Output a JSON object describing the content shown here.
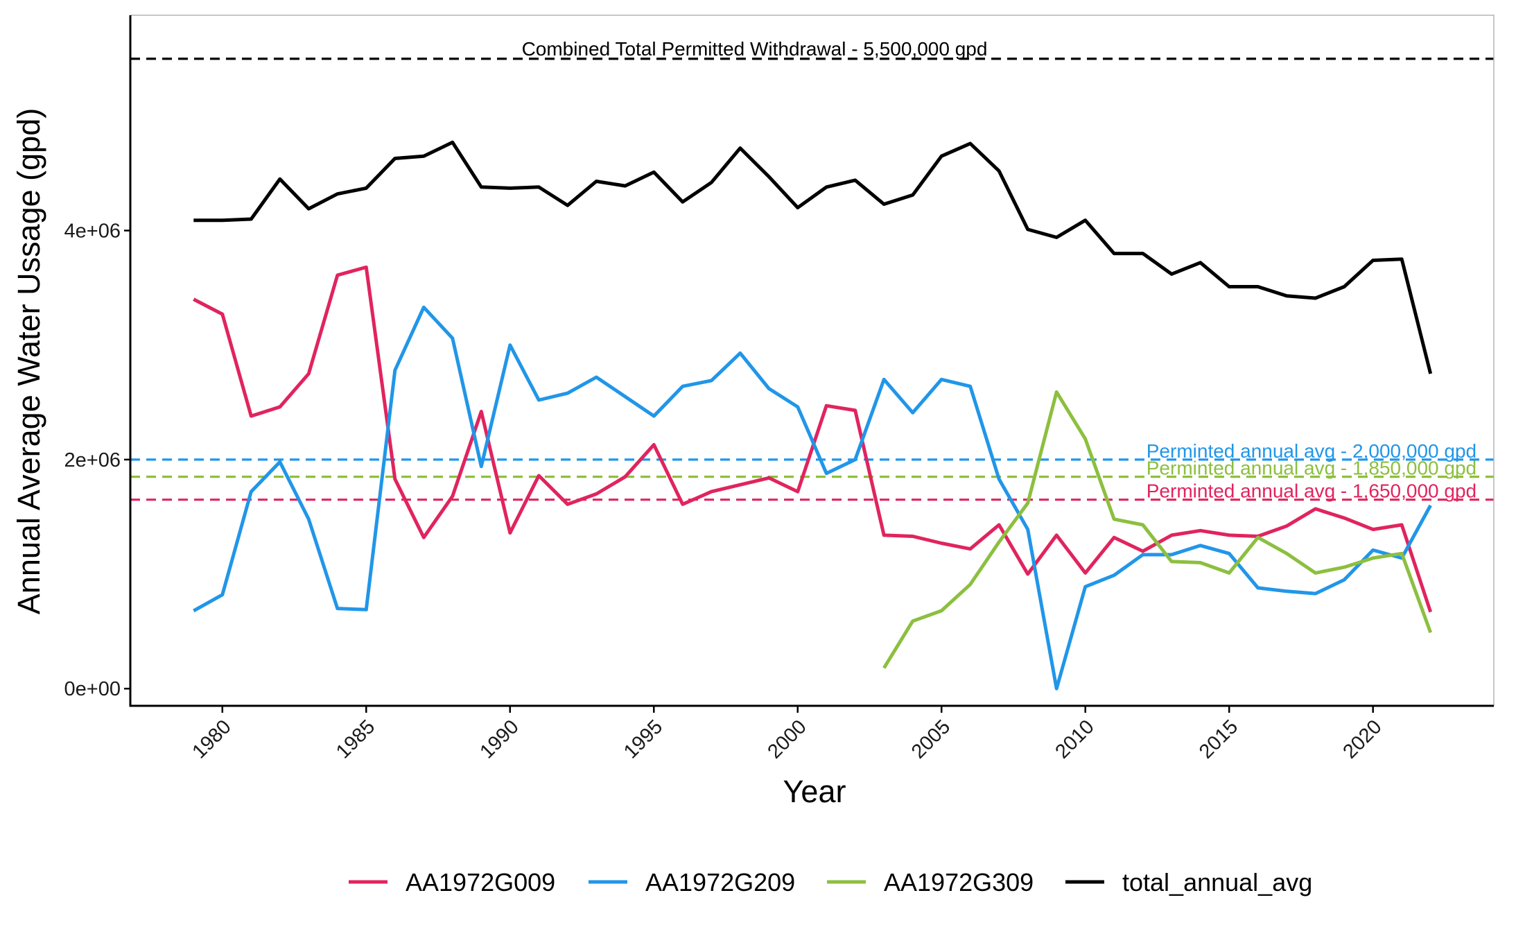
{
  "chart_data": {
    "type": "line",
    "title": "",
    "xlabel": "Year",
    "ylabel": "Annual Average Water Ussage (gpd)",
    "xlim": [
      1976.8,
      2024.2
    ],
    "ylim": [
      -150000,
      5880000
    ],
    "x_ticks": [
      1980,
      1985,
      1990,
      1995,
      2000,
      2005,
      2010,
      2015,
      2020
    ],
    "x_tick_labels": [
      "1980",
      "1985",
      "1990",
      "1995",
      "2000",
      "2005",
      "2010",
      "2015",
      "2020"
    ],
    "y_ticks": [
      0,
      2000000,
      4000000
    ],
    "y_tick_labels": [
      "0e+00",
      "2e+06",
      "4e+06"
    ],
    "grid": false,
    "legend_position": "bottom",
    "series": [
      {
        "name": "AA1972G009",
        "color": "#e0245e",
        "x": [
          1979,
          1980,
          1981,
          1982,
          1983,
          1984,
          1985,
          1986,
          1987,
          1988,
          1989,
          1990,
          1991,
          1992,
          1993,
          1994,
          1995,
          1996,
          1997,
          1998,
          1999,
          2000,
          2001,
          2002,
          2003,
          2004,
          2005,
          2006,
          2007,
          2008,
          2009,
          2010,
          2011,
          2012,
          2013,
          2014,
          2015,
          2016,
          2017,
          2018,
          2019,
          2020,
          2021,
          2022
        ],
        "y": [
          3400000,
          3270000,
          2380000,
          2460000,
          2750000,
          3610000,
          3680000,
          1830000,
          1320000,
          1680000,
          2420000,
          1360000,
          1860000,
          1610000,
          1700000,
          1850000,
          2130000,
          1610000,
          1720000,
          1780000,
          1840000,
          1720000,
          2470000,
          2430000,
          1340000,
          1330000,
          1270000,
          1220000,
          1430000,
          1000000,
          1340000,
          1010000,
          1320000,
          1200000,
          1340000,
          1380000,
          1340000,
          1330000,
          1420000,
          1570000,
          1490000,
          1390000,
          1430000,
          670000
        ]
      },
      {
        "name": "AA1972G209",
        "color": "#2196e8",
        "x": [
          1979,
          1980,
          1981,
          1982,
          1983,
          1984,
          1985,
          1986,
          1987,
          1988,
          1989,
          1990,
          1991,
          1992,
          1993,
          1994,
          1995,
          1996,
          1997,
          1998,
          1999,
          2000,
          2001,
          2002,
          2003,
          2004,
          2005,
          2006,
          2007,
          2008,
          2009,
          2010,
          2011,
          2012,
          2013,
          2014,
          2015,
          2016,
          2017,
          2018,
          2019,
          2020,
          2021,
          2022
        ],
        "y": [
          680000,
          820000,
          1720000,
          1980000,
          1480000,
          700000,
          690000,
          2780000,
          3330000,
          3060000,
          1940000,
          3000000,
          2520000,
          2580000,
          2720000,
          2550000,
          2380000,
          2640000,
          2690000,
          2930000,
          2620000,
          2460000,
          1880000,
          2000000,
          2700000,
          2410000,
          2700000,
          2640000,
          1830000,
          1390000,
          0,
          890000,
          990000,
          1170000,
          1170000,
          1250000,
          1180000,
          880000,
          850000,
          830000,
          950000,
          1210000,
          1140000,
          1600000
        ]
      },
      {
        "name": "AA1972G309",
        "color": "#8cbf3f",
        "x": [
          2003,
          2004,
          2005,
          2006,
          2007,
          2008,
          2009,
          2010,
          2011,
          2012,
          2013,
          2014,
          2015,
          2016,
          2017,
          2018,
          2019,
          2020,
          2021,
          2022
        ],
        "y": [
          180000,
          590000,
          680000,
          910000,
          1280000,
          1620000,
          2590000,
          2180000,
          1480000,
          1430000,
          1110000,
          1100000,
          1010000,
          1320000,
          1180000,
          1010000,
          1060000,
          1140000,
          1180000,
          490000
        ]
      },
      {
        "name": "total_annual_avg",
        "color": "#000000",
        "x": [
          1979,
          1980,
          1981,
          1982,
          1983,
          1984,
          1985,
          1986,
          1987,
          1988,
          1989,
          1990,
          1991,
          1992,
          1993,
          1994,
          1995,
          1996,
          1997,
          1998,
          1999,
          2000,
          2001,
          2002,
          2003,
          2004,
          2005,
          2006,
          2007,
          2008,
          2009,
          2010,
          2011,
          2012,
          2013,
          2014,
          2015,
          2016,
          2017,
          2018,
          2019,
          2020,
          2021,
          2022
        ],
        "y": [
          4090000,
          4090000,
          4100000,
          4450000,
          4190000,
          4320000,
          4370000,
          4630000,
          4650000,
          4770000,
          4380000,
          4370000,
          4380000,
          4220000,
          4430000,
          4390000,
          4510000,
          4250000,
          4420000,
          4720000,
          4470000,
          4200000,
          4380000,
          4440000,
          4230000,
          4310000,
          4650000,
          4760000,
          4520000,
          4010000,
          3940000,
          4090000,
          3800000,
          3800000,
          3620000,
          3720000,
          3510000,
          3510000,
          3430000,
          3410000,
          3510000,
          3740000,
          3750000,
          2750000
        ]
      }
    ],
    "reference_lines": [
      {
        "y": 5500000,
        "color": "#000000",
        "label": "Combined Total Permitted Withdrawal  - 5,500,000 gpd",
        "label_x": 1998.5
      },
      {
        "y": 2000000,
        "color": "#2196e8",
        "label": "Perminted annual avg - 2,000,000 gpd",
        "label_x": 2023.6
      },
      {
        "y": 1850000,
        "color": "#8cbf3f",
        "label": "Perminted annual avg - 1,850,000 gpd",
        "label_x": 2023.6
      },
      {
        "y": 1650000,
        "color": "#e0245e",
        "label": "Perminted annual avg - 1,650,000 gpd",
        "label_x": 2023.6
      }
    ]
  }
}
